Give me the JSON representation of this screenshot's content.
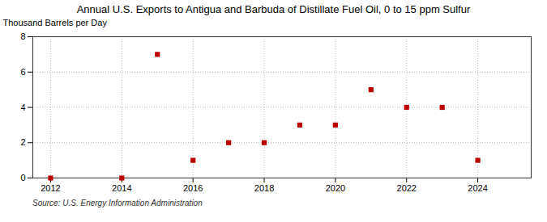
{
  "chart_data": {
    "type": "scatter",
    "title": "Annual U.S. Exports to Antigua and Barbuda of Distillate Fuel Oil, 0 to 15 ppm Sulfur",
    "y_label": "Thousand Barrels per Day",
    "annotation": "Source: U.S. Energy Information Administration",
    "x": [
      2012,
      2014,
      2015,
      2016,
      2017,
      2018,
      2019,
      2020,
      2021,
      2022,
      2023,
      2024
    ],
    "values": [
      0.0,
      0.0,
      7.0,
      1.0,
      2.0,
      2.0,
      3.0,
      3.0,
      5.0,
      4.0,
      4.0,
      1.0
    ],
    "xlim": [
      2011.5,
      2025.5
    ],
    "ylim": [
      0,
      8
    ],
    "xticks": [
      2012,
      2014,
      2016,
      2018,
      2020,
      2022,
      2024
    ],
    "yticks": [
      0,
      2,
      4,
      6,
      8
    ],
    "color": "#bb0000",
    "marker": "square",
    "grid": true
  }
}
